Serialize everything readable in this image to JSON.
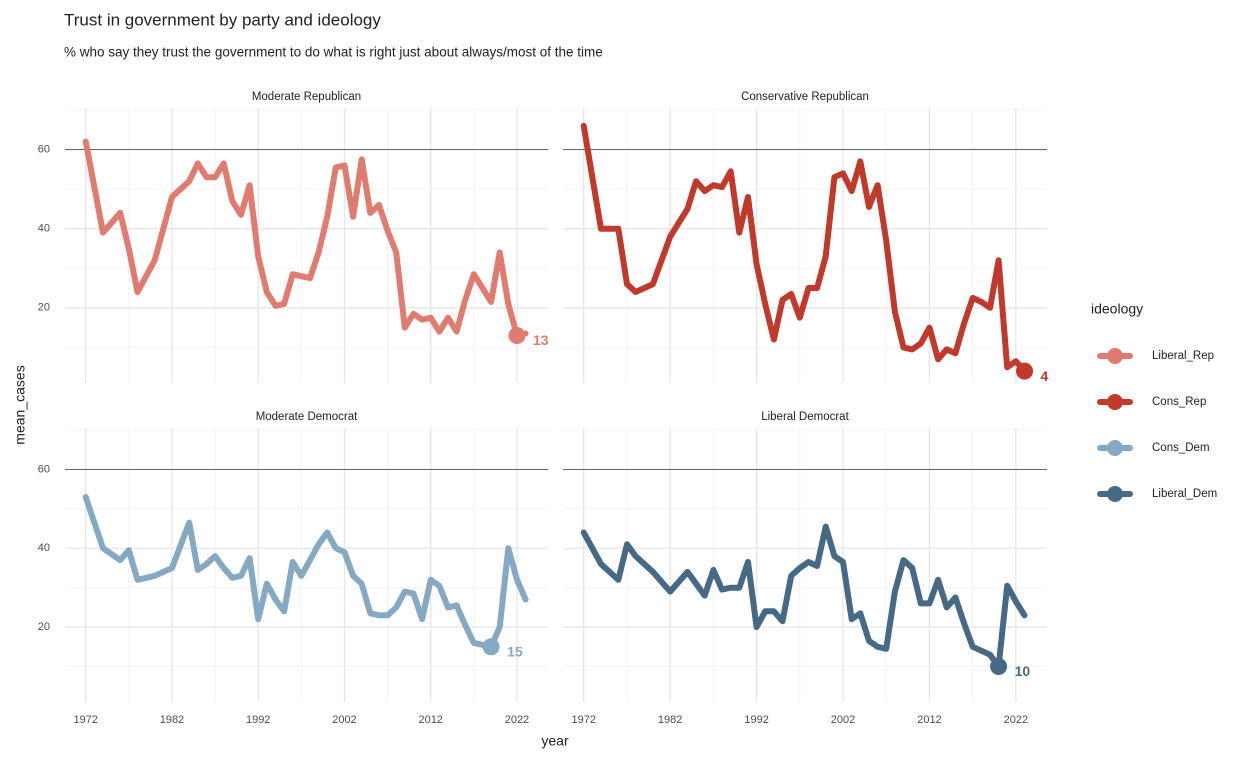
{
  "chart_data": {
    "type": "line",
    "title": "Trust in government by party and ideology",
    "subtitle": "% who say they trust the government to do what is right just about always/most of the time",
    "x_label": "year",
    "y_label": "mean_cases",
    "legend_title": "ideology",
    "grid": true,
    "hline": 60,
    "x": [
      1972,
      1974,
      1976,
      1977,
      1978,
      1980,
      1982,
      1984,
      1985,
      1986,
      1987,
      1988,
      1989,
      1990,
      1991,
      1992,
      1993,
      1994,
      1995,
      1996,
      1997,
      1998,
      1999,
      2000,
      2001,
      2002,
      2003,
      2004,
      2005,
      2006,
      2007,
      2008,
      2009,
      2010,
      2011,
      2012,
      2013,
      2014,
      2015,
      2016,
      2017,
      2018,
      2019,
      2020,
      2021,
      2022,
      2023
    ],
    "xlim": [
      1969.6,
      2025.6
    ],
    "xticks": [
      1972,
      1982,
      1992,
      2002,
      2012,
      2022
    ],
    "ylim": [
      1,
      70.5
    ],
    "yticks": [
      20,
      40,
      60
    ],
    "series": [
      {
        "name": "Liberal_Rep",
        "color": "#e07b6f",
        "facet": "Moderate Republican",
        "values": [
          62,
          39,
          44,
          35,
          24,
          32,
          48,
          52,
          56.5,
          53,
          53,
          56.5,
          47,
          43.5,
          51,
          33,
          24,
          20.5,
          21,
          28.5,
          28,
          27.5,
          34,
          43,
          55.5,
          56,
          43,
          57.5,
          44,
          46,
          39.5,
          34,
          15,
          18.5,
          17,
          17.5,
          14,
          17.5,
          14,
          22,
          28.5,
          25,
          21.5,
          34,
          21,
          13,
          13.5
        ],
        "marker": {
          "x": 2022,
          "value": 13
        }
      },
      {
        "name": "Cons_Rep",
        "color": "#c0392b",
        "facet": "Conservative Republican",
        "values": [
          66,
          40,
          40,
          26,
          24,
          26,
          38,
          45,
          52,
          49.5,
          51,
          50.5,
          54.5,
          39,
          48,
          31,
          21,
          12,
          22,
          23.5,
          17.5,
          25,
          25,
          33,
          53,
          54,
          49.5,
          57,
          45.5,
          51,
          37,
          19,
          10,
          9.5,
          11,
          15,
          7,
          9.5,
          8.5,
          16,
          22.5,
          21.5,
          20,
          32,
          5,
          6.5,
          4
        ],
        "marker": {
          "x": 2023,
          "value": 4
        }
      },
      {
        "name": "Cons_Dem",
        "color": "#85a8c3",
        "facet": "Moderate Democrat",
        "values": [
          53,
          40,
          37,
          39.5,
          32,
          33,
          35,
          46.5,
          34.5,
          36,
          38,
          35,
          32.5,
          33,
          37.5,
          22,
          31,
          27,
          24,
          36.5,
          33,
          37,
          41,
          44,
          40,
          39,
          33,
          31,
          23.5,
          23,
          23,
          25,
          29,
          28.5,
          22,
          32,
          30.5,
          25,
          25.5,
          20.5,
          16,
          15.5,
          15,
          20,
          40,
          32,
          27
        ],
        "marker": {
          "x": 2019,
          "value": 15
        }
      },
      {
        "name": "Liberal_Dem",
        "color": "#466a85",
        "facet": "Liberal Democrat",
        "values": [
          44,
          36,
          32,
          41,
          38,
          34,
          29,
          34,
          31,
          28,
          34.5,
          29.5,
          30,
          30,
          36.5,
          20,
          24,
          24,
          21.5,
          33,
          35,
          36.5,
          35.5,
          45.5,
          38,
          36.5,
          22,
          23.5,
          16.5,
          15,
          14.5,
          29,
          37,
          35,
          26,
          26,
          32,
          25,
          27.5,
          21,
          15,
          14,
          13,
          10,
          30.5,
          26.5,
          23
        ],
        "marker": {
          "x": 2020,
          "value": 10
        }
      }
    ]
  }
}
